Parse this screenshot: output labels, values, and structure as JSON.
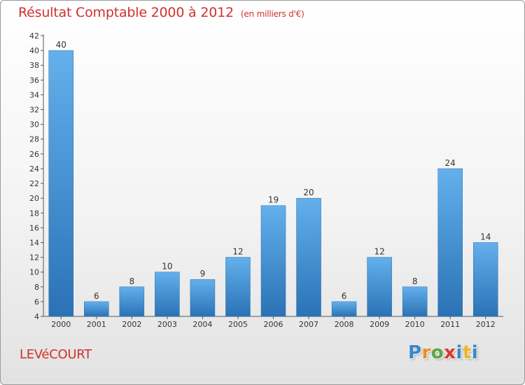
{
  "chart_data": {
    "type": "bar",
    "title": "Résultat Comptable 2000 à 2012",
    "subtitle": "(en milliers d'€)",
    "xlabel": "",
    "ylabel": "",
    "categories": [
      "2000",
      "2001",
      "2002",
      "2003",
      "2004",
      "2005",
      "2006",
      "2007",
      "2008",
      "2009",
      "2010",
      "2011",
      "2012"
    ],
    "values": [
      40,
      6,
      8,
      10,
      9,
      12,
      19,
      20,
      6,
      12,
      8,
      24,
      14
    ],
    "ylim": [
      4,
      42
    ],
    "yticks": [
      4,
      6,
      8,
      10,
      12,
      14,
      16,
      18,
      20,
      22,
      24,
      26,
      28,
      30,
      32,
      34,
      36,
      38,
      40,
      42
    ],
    "grid": false,
    "bar_color_top": "#63b0ec",
    "bar_color_bottom": "#2a72b5"
  },
  "footer": {
    "town": "LEVéCOURT",
    "logo_letters": [
      "P",
      "r",
      "o",
      "x",
      "i",
      "t",
      "i"
    ]
  },
  "colors": {
    "title": "#d0312d",
    "axis": "#555555"
  }
}
